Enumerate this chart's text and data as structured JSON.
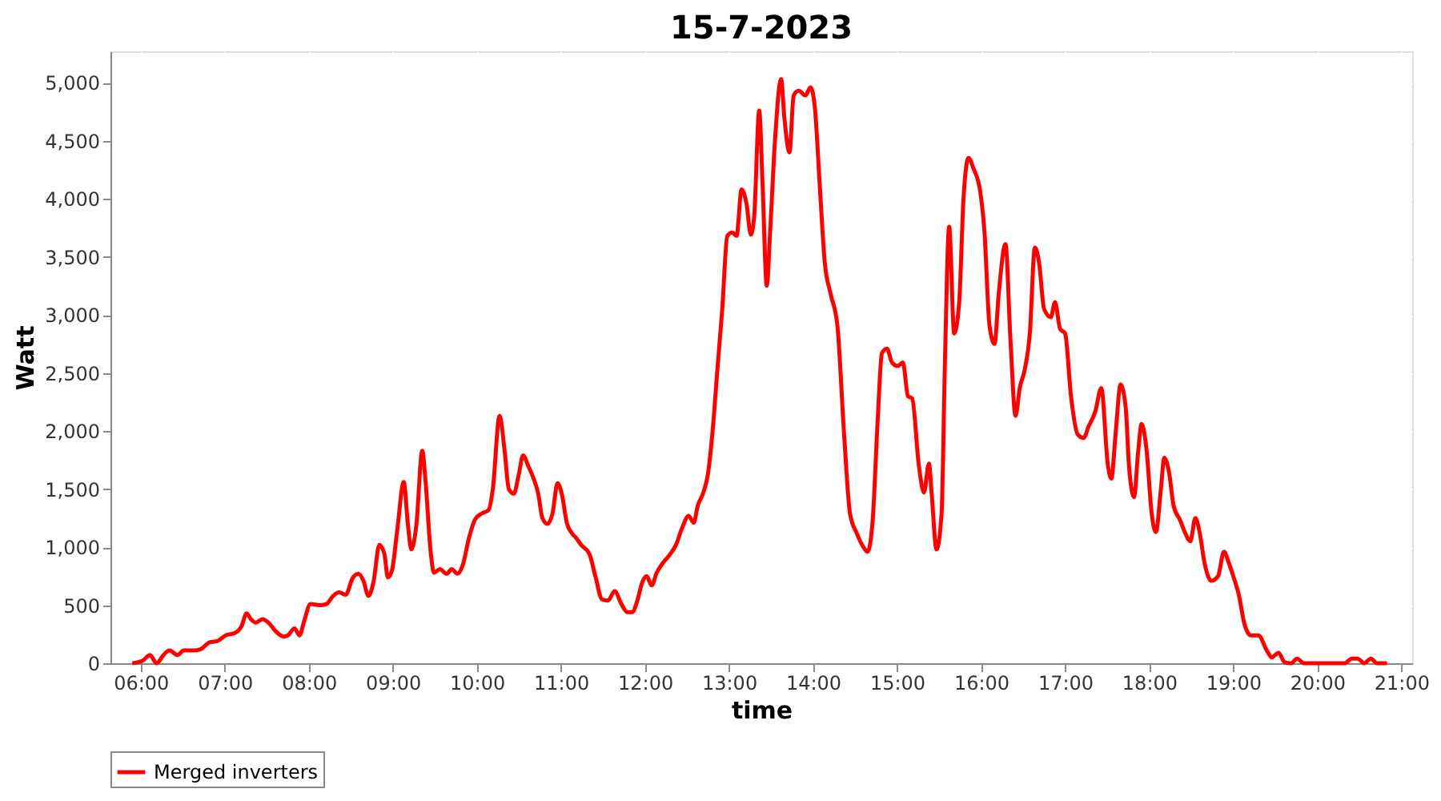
{
  "chart_data": {
    "type": "line",
    "title": "15-7-2023",
    "xlabel": "time",
    "ylabel": "Watt",
    "x": [
      5.9,
      6.02,
      6.11,
      6.19,
      6.27,
      6.34,
      6.44,
      6.51,
      6.63,
      6.71,
      6.82,
      6.91,
      7.01,
      7.12,
      7.2,
      7.26,
      7.31,
      7.37,
      7.45,
      7.52,
      7.6,
      7.7,
      7.75,
      7.83,
      7.89,
      7.94,
      8.02,
      8.13,
      8.21,
      8.29,
      8.36,
      8.44,
      8.52,
      8.59,
      8.65,
      8.71,
      8.77,
      8.84,
      8.9,
      8.94,
      8.99,
      9.05,
      9.13,
      9.18,
      9.22,
      9.28,
      9.35,
      9.39,
      9.45,
      9.49,
      9.56,
      9.64,
      9.7,
      9.77,
      9.83,
      9.91,
      9.98,
      10.06,
      10.14,
      10.19,
      10.27,
      10.33,
      10.38,
      10.44,
      10.5,
      10.55,
      10.61,
      10.67,
      10.73,
      10.78,
      10.84,
      10.9,
      10.96,
      11.01,
      11.07,
      11.13,
      11.18,
      11.24,
      11.34,
      11.41,
      11.49,
      11.56,
      11.64,
      11.72,
      11.79,
      11.85,
      11.91,
      11.97,
      12.02,
      12.08,
      12.14,
      12.21,
      12.29,
      12.37,
      12.44,
      12.52,
      12.58,
      12.63,
      12.69,
      12.75,
      12.81,
      12.86,
      12.92,
      12.98,
      13.04,
      13.09,
      13.15,
      13.21,
      13.26,
      13.3,
      13.36,
      13.4,
      13.45,
      13.49,
      13.55,
      13.62,
      13.66,
      13.72,
      13.77,
      13.83,
      13.91,
      13.97,
      14.02,
      14.08,
      14.14,
      14.21,
      14.29,
      14.37,
      14.44,
      14.52,
      14.6,
      14.65,
      14.71,
      14.77,
      14.82,
      14.88,
      14.94,
      15.01,
      15.07,
      15.13,
      15.18,
      15.26,
      15.32,
      15.38,
      15.41,
      15.47,
      15.53,
      15.57,
      15.62,
      15.68,
      15.74,
      15.79,
      15.85,
      15.91,
      15.99,
      16.04,
      16.1,
      16.16,
      16.21,
      16.29,
      16.35,
      16.41,
      16.46,
      16.52,
      16.58,
      16.64,
      16.69,
      16.75,
      16.83,
      16.88,
      16.94,
      17.0,
      17.07,
      17.15,
      17.22,
      17.28,
      17.36,
      17.43,
      17.51,
      17.55,
      17.6,
      17.66,
      17.72,
      17.76,
      17.82,
      17.87,
      17.91,
      17.97,
      18.03,
      18.08,
      18.14,
      18.18,
      18.24,
      18.29,
      18.37,
      18.43,
      18.49,
      18.55,
      18.6,
      18.66,
      18.74,
      18.82,
      18.89,
      18.95,
      19.01,
      19.07,
      19.13,
      19.21,
      19.3,
      19.4,
      19.46,
      19.54,
      19.61,
      19.69,
      19.76,
      19.84,
      20.03,
      20.33,
      20.41,
      20.48,
      20.56,
      20.64,
      20.71,
      20.83
    ],
    "series": [
      {
        "name": "Merged inverters",
        "color": "#ff0000",
        "values": [
          0,
          20,
          70,
          0,
          70,
          110,
          70,
          110,
          110,
          120,
          180,
          190,
          240,
          260,
          320,
          430,
          380,
          350,
          380,
          350,
          280,
          230,
          240,
          300,
          240,
          350,
          510,
          500,
          510,
          580,
          610,
          590,
          730,
          770,
          710,
          580,
          700,
          1020,
          940,
          740,
          800,
          1130,
          1560,
          1190,
          980,
          1190,
          1830,
          1560,
          960,
          780,
          810,
          770,
          810,
          770,
          840,
          1090,
          1240,
          1290,
          1320,
          1500,
          2130,
          1830,
          1500,
          1460,
          1630,
          1790,
          1700,
          1600,
          1460,
          1250,
          1200,
          1290,
          1550,
          1460,
          1210,
          1120,
          1080,
          1020,
          940,
          750,
          550,
          540,
          620,
          510,
          440,
          440,
          540,
          700,
          750,
          670,
          780,
          860,
          930,
          1020,
          1160,
          1270,
          1210,
          1360,
          1460,
          1630,
          2040,
          2510,
          3050,
          3680,
          3710,
          3680,
          4080,
          3950,
          3690,
          3850,
          4760,
          4120,
          3250,
          3720,
          4530,
          5030,
          4690,
          4400,
          4890,
          4930,
          4890,
          4960,
          4800,
          4120,
          3450,
          3180,
          2910,
          1970,
          1290,
          1120,
          1000,
          960,
          1230,
          2100,
          2670,
          2710,
          2590,
          2560,
          2590,
          2300,
          2280,
          1700,
          1470,
          1720,
          1480,
          980,
          1290,
          2600,
          3760,
          2840,
          3110,
          3990,
          4350,
          4260,
          4060,
          3720,
          2910,
          2750,
          3180,
          3610,
          2780,
          2130,
          2370,
          2530,
          2840,
          3580,
          3450,
          3050,
          2980,
          3110,
          2880,
          2840,
          2300,
          1970,
          1940,
          2040,
          2170,
          2370,
          1700,
          1590,
          1970,
          2400,
          2210,
          1700,
          1430,
          1830,
          2060,
          1830,
          1290,
          1130,
          1500,
          1770,
          1630,
          1360,
          1230,
          1120,
          1050,
          1250,
          1130,
          860,
          710,
          750,
          960,
          860,
          730,
          580,
          350,
          240,
          240,
          110,
          50,
          90,
          10,
          0,
          40,
          0,
          0,
          0,
          40,
          40,
          0,
          40,
          0,
          0
        ]
      }
    ],
    "xlim": [
      5.64,
      21.13
    ],
    "xticks": [
      {
        "value": 6,
        "label": "06:00"
      },
      {
        "value": 7,
        "label": "07:00"
      },
      {
        "value": 8,
        "label": "08:00"
      },
      {
        "value": 9,
        "label": "09:00"
      },
      {
        "value": 10,
        "label": "10:00"
      },
      {
        "value": 11,
        "label": "11:00"
      },
      {
        "value": 12,
        "label": "12:00"
      },
      {
        "value": 13,
        "label": "13:00"
      },
      {
        "value": 14,
        "label": "14:00"
      },
      {
        "value": 15,
        "label": "15:00"
      },
      {
        "value": 16,
        "label": "16:00"
      },
      {
        "value": 17,
        "label": "17:00"
      },
      {
        "value": 18,
        "label": "18:00"
      },
      {
        "value": 19,
        "label": "19:00"
      },
      {
        "value": 20,
        "label": "20:00"
      },
      {
        "value": 21,
        "label": "21:00"
      }
    ],
    "ylim": [
      0,
      5270
    ],
    "yticks": [
      0,
      500,
      {
        "value": 1000,
        "label": "1,000"
      },
      {
        "value": 1500,
        "label": "1,500"
      },
      {
        "value": 2000,
        "label": "2,000"
      },
      {
        "value": 2500,
        "label": "2,500"
      },
      {
        "value": 3000,
        "label": "3,000"
      },
      {
        "value": 3500,
        "label": "3,500"
      },
      {
        "value": 4000,
        "label": "4,000"
      },
      {
        "value": 4500,
        "label": "4,500"
      },
      {
        "value": 5000,
        "label": "5,000"
      }
    ],
    "grid": true,
    "legend": "bottom",
    "marker": "none",
    "line_style": "solid"
  }
}
